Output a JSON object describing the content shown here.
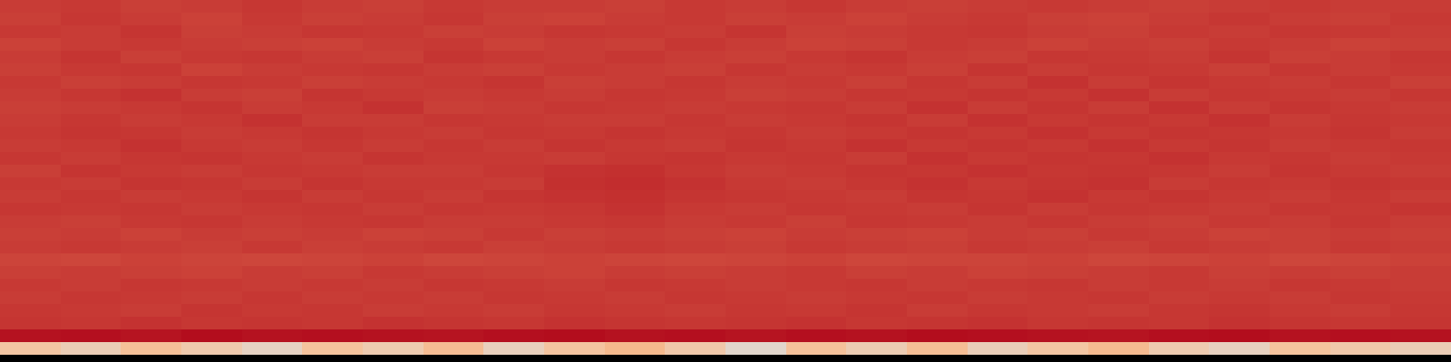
{
  "chart_data": {
    "type": "heatmap",
    "tick_labels": false,
    "zlim": [
      0,
      1
    ],
    "cells": [
      [
        0.8,
        0.81,
        0.79,
        0.8,
        0.82,
        0.8,
        0.79,
        0.81,
        0.8,
        0.8,
        0.79,
        0.81,
        0.8,
        0.82,
        0.8,
        0.79,
        0.8,
        0.81,
        0.8,
        0.79,
        0.8,
        0.81,
        0.8,
        0.8
      ],
      [
        0.79,
        0.82,
        0.8,
        0.78,
        0.81,
        0.79,
        0.8,
        0.82,
        0.79,
        0.78,
        0.8,
        0.81,
        0.79,
        0.8,
        0.78,
        0.8,
        0.81,
        0.79,
        0.78,
        0.8,
        0.82,
        0.8,
        0.79,
        0.81
      ],
      [
        0.81,
        0.8,
        0.83,
        0.79,
        0.8,
        0.82,
        0.81,
        0.79,
        0.8,
        0.82,
        0.81,
        0.8,
        0.83,
        0.79,
        0.8,
        0.81,
        0.82,
        0.8,
        0.79,
        0.81,
        0.8,
        0.82,
        0.81,
        0.8
      ],
      [
        0.78,
        0.8,
        0.81,
        0.8,
        0.79,
        0.78,
        0.8,
        0.81,
        0.78,
        0.8,
        0.79,
        0.82,
        0.8,
        0.78,
        0.79,
        0.81,
        0.8,
        0.78,
        0.8,
        0.79,
        0.81,
        0.8,
        0.78,
        0.79
      ],
      [
        0.8,
        0.83,
        0.79,
        0.81,
        0.82,
        0.8,
        0.79,
        0.83,
        0.81,
        0.8,
        0.82,
        0.8,
        0.79,
        0.81,
        0.83,
        0.8,
        0.79,
        0.82,
        0.81,
        0.8,
        0.83,
        0.79,
        0.8,
        0.82
      ],
      [
        0.79,
        0.81,
        0.82,
        0.78,
        0.8,
        0.81,
        0.82,
        0.8,
        0.79,
        0.81,
        0.8,
        0.79,
        0.82,
        0.8,
        0.81,
        0.79,
        0.83,
        0.8,
        0.82,
        0.81,
        0.79,
        0.82,
        0.8,
        0.81
      ],
      [
        0.81,
        0.79,
        0.8,
        0.82,
        0.81,
        0.79,
        0.8,
        0.81,
        0.83,
        0.79,
        0.8,
        0.82,
        0.8,
        0.81,
        0.79,
        0.82,
        0.8,
        0.84,
        0.8,
        0.83,
        0.81,
        0.8,
        0.82,
        0.79
      ],
      [
        0.8,
        0.82,
        0.84,
        0.8,
        0.79,
        0.83,
        0.81,
        0.8,
        0.81,
        0.8,
        0.82,
        0.81,
        0.79,
        0.8,
        0.82,
        0.81,
        0.83,
        0.81,
        0.84,
        0.8,
        0.82,
        0.81,
        0.8,
        0.82
      ],
      [
        0.79,
        0.8,
        0.81,
        0.83,
        0.8,
        0.81,
        0.84,
        0.79,
        0.8,
        0.82,
        0.81,
        0.8,
        0.81,
        0.82,
        0.8,
        0.84,
        0.8,
        0.83,
        0.8,
        0.84,
        0.8,
        0.83,
        0.81,
        0.8
      ],
      [
        0.8,
        0.82,
        0.8,
        0.81,
        0.84,
        0.8,
        0.8,
        0.82,
        0.81,
        0.8,
        0.8,
        0.82,
        0.8,
        0.81,
        0.83,
        0.8,
        0.84,
        0.81,
        0.83,
        0.81,
        0.84,
        0.8,
        0.82,
        0.81
      ],
      [
        0.81,
        0.83,
        0.82,
        0.8,
        0.81,
        0.83,
        0.81,
        0.8,
        0.82,
        0.81,
        0.83,
        0.81,
        0.82,
        0.8,
        0.81,
        0.83,
        0.81,
        0.84,
        0.81,
        0.83,
        0.82,
        0.81,
        0.83,
        0.8
      ],
      [
        0.8,
        0.81,
        0.84,
        0.81,
        0.8,
        0.82,
        0.8,
        0.82,
        0.8,
        0.83,
        0.81,
        0.8,
        0.83,
        0.81,
        0.84,
        0.81,
        0.83,
        0.81,
        0.84,
        0.81,
        0.83,
        0.8,
        0.81,
        0.82
      ],
      [
        0.82,
        0.8,
        0.82,
        0.83,
        0.81,
        0.8,
        0.83,
        0.81,
        0.81,
        0.8,
        0.82,
        0.83,
        0.81,
        0.82,
        0.8,
        0.84,
        0.81,
        0.83,
        0.82,
        0.84,
        0.81,
        0.82,
        0.8,
        0.81
      ],
      [
        0.79,
        0.83,
        0.81,
        0.8,
        0.82,
        0.81,
        0.8,
        0.8,
        0.82,
        0.84,
        0.85,
        0.82,
        0.8,
        0.81,
        0.83,
        0.82,
        0.84,
        0.82,
        0.83,
        0.82,
        0.8,
        0.83,
        0.81,
        0.8
      ],
      [
        0.81,
        0.8,
        0.83,
        0.82,
        0.8,
        0.83,
        0.81,
        0.81,
        0.8,
        0.85,
        0.86,
        0.84,
        0.81,
        0.8,
        0.82,
        0.84,
        0.81,
        0.83,
        0.84,
        0.8,
        0.82,
        0.81,
        0.83,
        0.82
      ],
      [
        0.8,
        0.82,
        0.8,
        0.81,
        0.83,
        0.8,
        0.82,
        0.8,
        0.83,
        0.84,
        0.85,
        0.83,
        0.82,
        0.81,
        0.8,
        0.83,
        0.82,
        0.84,
        0.81,
        0.83,
        0.81,
        0.8,
        0.82,
        0.8
      ],
      [
        0.82,
        0.81,
        0.82,
        0.8,
        0.81,
        0.82,
        0.8,
        0.82,
        0.81,
        0.82,
        0.84,
        0.81,
        0.8,
        0.82,
        0.81,
        0.8,
        0.83,
        0.8,
        0.82,
        0.81,
        0.8,
        0.82,
        0.81,
        0.83
      ],
      [
        0.8,
        0.79,
        0.81,
        0.82,
        0.8,
        0.81,
        0.82,
        0.8,
        0.8,
        0.81,
        0.82,
        0.8,
        0.81,
        0.79,
        0.82,
        0.81,
        0.8,
        0.82,
        0.8,
        0.79,
        0.81,
        0.8,
        0.82,
        0.8
      ],
      [
        0.79,
        0.8,
        0.78,
        0.8,
        0.79,
        0.8,
        0.78,
        0.79,
        0.81,
        0.79,
        0.8,
        0.79,
        0.78,
        0.8,
        0.79,
        0.78,
        0.8,
        0.79,
        0.81,
        0.8,
        0.78,
        0.79,
        0.8,
        0.79
      ],
      [
        0.8,
        0.81,
        0.8,
        0.79,
        0.81,
        0.79,
        0.8,
        0.81,
        0.79,
        0.8,
        0.81,
        0.8,
        0.79,
        0.81,
        0.8,
        0.79,
        0.81,
        0.8,
        0.79,
        0.81,
        0.8,
        0.79,
        0.81,
        0.8
      ],
      [
        0.77,
        0.76,
        0.78,
        0.77,
        0.76,
        0.77,
        0.78,
        0.76,
        0.77,
        0.78,
        0.77,
        0.76,
        0.77,
        0.78,
        0.76,
        0.77,
        0.77,
        0.78,
        0.76,
        0.77,
        0.78,
        0.76,
        0.77,
        0.78
      ],
      [
        0.79,
        0.8,
        0.79,
        0.78,
        0.8,
        0.79,
        0.81,
        0.8,
        0.79,
        0.78,
        0.8,
        0.79,
        0.8,
        0.81,
        0.79,
        0.8,
        0.78,
        0.79,
        0.8,
        0.81,
        0.79,
        0.8,
        0.79,
        0.8
      ],
      [
        0.81,
        0.8,
        0.82,
        0.81,
        0.8,
        0.81,
        0.8,
        0.82,
        0.81,
        0.8,
        0.82,
        0.81,
        0.8,
        0.81,
        0.82,
        0.8,
        0.81,
        0.82,
        0.8,
        0.81,
        0.8,
        0.82,
        0.81,
        0.8
      ],
      [
        0.8,
        0.82,
        0.81,
        0.8,
        0.82,
        0.8,
        0.81,
        0.8,
        0.82,
        0.81,
        0.8,
        0.82,
        0.81,
        0.8,
        0.81,
        0.82,
        0.8,
        0.81,
        0.82,
        0.8,
        0.81,
        0.8,
        0.82,
        0.81
      ],
      [
        0.82,
        0.81,
        0.8,
        0.83,
        0.81,
        0.82,
        0.8,
        0.81,
        0.8,
        0.82,
        0.81,
        0.8,
        0.82,
        0.81,
        0.83,
        0.8,
        0.82,
        0.81,
        0.8,
        0.82,
        0.83,
        0.81,
        0.8,
        0.82
      ],
      [
        0.83,
        0.82,
        0.84,
        0.82,
        0.83,
        0.82,
        0.84,
        0.83,
        0.82,
        0.84,
        0.83,
        0.82,
        0.83,
        0.84,
        0.82,
        0.83,
        0.84,
        0.82,
        0.83,
        0.82,
        0.84,
        0.83,
        0.82,
        0.83
      ],
      [
        0.97,
        0.98,
        0.96,
        0.99,
        0.97,
        0.98,
        0.97,
        0.96,
        0.98,
        0.99,
        0.97,
        0.98,
        0.96,
        0.98,
        0.97,
        0.99,
        0.98,
        0.97,
        0.96,
        0.98,
        0.99,
        0.97,
        0.98,
        0.97
      ],
      [
        0.18,
        0.12,
        0.22,
        0.15,
        0.08,
        0.2,
        0.14,
        0.24,
        0.1,
        0.19,
        0.26,
        0.16,
        0.05,
        0.21,
        0.13,
        0.23,
        0.11,
        0.18,
        0.25,
        0.14,
        0.09,
        0.2,
        0.16,
        0.12
      ]
    ]
  }
}
